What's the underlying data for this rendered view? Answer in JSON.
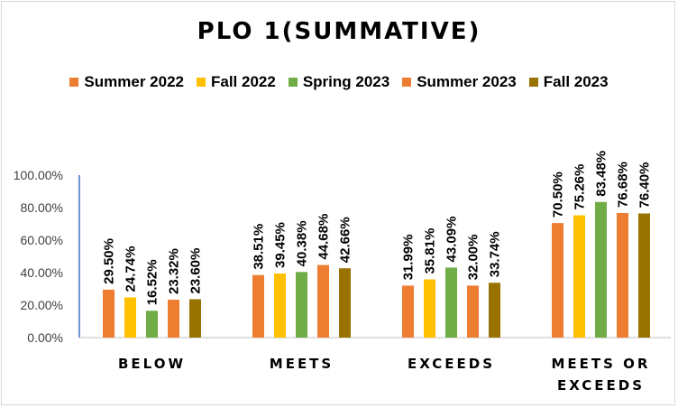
{
  "chart_data": {
    "type": "bar",
    "title": "PLO 1(SUMMATIVE)",
    "categories": [
      "BELOW",
      "MEETS",
      "EXCEEDS",
      "MEETS OR EXCEEDS"
    ],
    "series": [
      {
        "name": "Summer 2022",
        "color": "#ED7D31",
        "values": [
          29.5,
          38.51,
          31.99,
          70.5
        ]
      },
      {
        "name": "Fall 2022",
        "color": "#FFC000",
        "values": [
          24.74,
          39.45,
          35.81,
          75.26
        ]
      },
      {
        "name": "Spring 2023",
        "color": "#70AD47",
        "values": [
          16.52,
          40.38,
          43.09,
          83.48
        ]
      },
      {
        "name": "Summer 2023",
        "color": "#ED7D31",
        "values": [
          23.32,
          44.68,
          32.0,
          76.68
        ]
      },
      {
        "name": "Fall 2023",
        "color": "#997300",
        "values": [
          23.6,
          42.66,
          33.74,
          76.4
        ]
      }
    ],
    "data_labels": [
      [
        "29.50%",
        "38.51%",
        "31.99%",
        "70.50%"
      ],
      [
        "24.74%",
        "39.45%",
        "35.81%",
        "75.26%"
      ],
      [
        "16.52%",
        "40.38%",
        "43.09%",
        "83.48%"
      ],
      [
        "23.32%",
        "44.68%",
        "32.00%",
        "76.68%"
      ],
      [
        "23.60%",
        "42.66%",
        "33.74%",
        "76.40%"
      ]
    ],
    "y_ticks": [
      "0.00%",
      "20.00%",
      "40.00%",
      "60.00%",
      "80.00%",
      "100.00%"
    ],
    "ylim": [
      0,
      100
    ],
    "xlabel": "",
    "ylabel": "",
    "grid": false,
    "legend_position": "top"
  }
}
